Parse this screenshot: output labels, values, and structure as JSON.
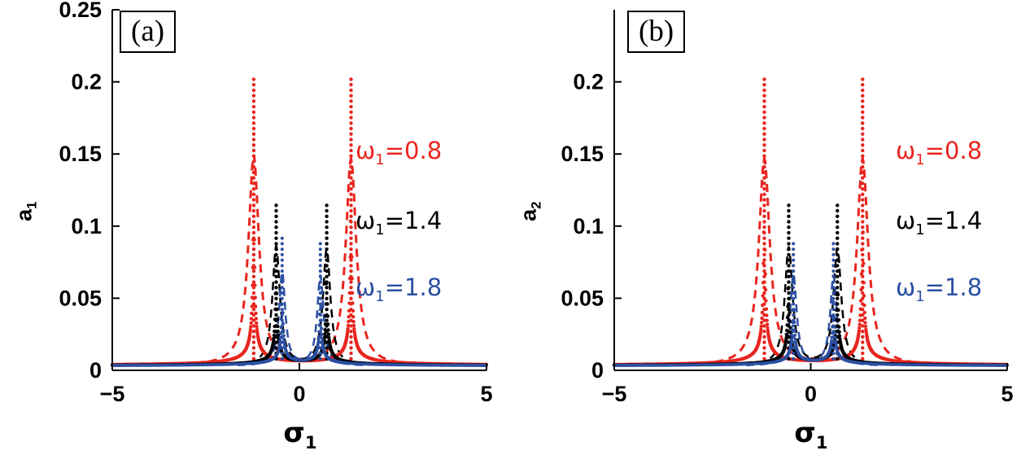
{
  "figure": {
    "background": "#ffffff",
    "panels": [
      {
        "tag": "(a)",
        "xlabel": {
          "base": "σ",
          "sub": "1"
        },
        "ylabel": {
          "base": "a",
          "sub": "1"
        },
        "legend": [
          {
            "base": "ω",
            "sub": "1",
            "rest": "=0.8",
            "color": "#e8251f"
          },
          {
            "base": "ω",
            "sub": "1",
            "rest": "=1.4",
            "color": "#000000"
          },
          {
            "base": "ω",
            "sub": "1",
            "rest": "=1.8",
            "color": "#2b4fa2"
          }
        ]
      },
      {
        "tag": "(b)",
        "xlabel": {
          "base": "σ",
          "sub": "1"
        },
        "ylabel": {
          "base": "a",
          "sub": "2"
        },
        "legend": [
          {
            "base": "ω",
            "sub": "1",
            "rest": "=0.8",
            "color": "#e8251f"
          },
          {
            "base": "ω",
            "sub": "1",
            "rest": "=1.4",
            "color": "#000000"
          },
          {
            "base": "ω",
            "sub": "1",
            "rest": "=1.8",
            "color": "#2b4fa2"
          }
        ]
      }
    ]
  },
  "chart_data": [
    {
      "type": "scatter",
      "panel": "(a)",
      "title": "",
      "xlabel": "sigma_1 (detuning)",
      "ylabel": "a_1 (amplitude)",
      "xlim": [
        -5,
        5
      ],
      "ylim": [
        0,
        0.25
      ],
      "xticks": [
        -5,
        0,
        5
      ],
      "yticks": [
        0,
        0.05,
        0.1,
        0.15,
        0.2,
        0.25
      ],
      "grid": false,
      "legend_position": "inside-right",
      "series": [
        {
          "name": "omega1=0.8",
          "color": "#e8251f",
          "stable_style": "dot-markers",
          "unstable_style": "dashed",
          "baseline": 0.003,
          "dash_width": 0.17,
          "dash_span": 2.3,
          "peaks": [
            {
              "x": -1.22,
              "height": 0.205
            },
            {
              "x": 1.38,
              "height": 0.202
            }
          ]
        },
        {
          "name": "omega1=1.4",
          "color": "#000000",
          "stable_style": "dot-markers",
          "unstable_style": "dashed",
          "baseline": 0.003,
          "dash_width": 0.12,
          "dash_span": 1.5,
          "peaks": [
            {
              "x": -0.62,
              "height": 0.118
            },
            {
              "x": 0.73,
              "height": 0.115
            }
          ]
        },
        {
          "name": "omega1=1.8",
          "color": "#2b4fa2",
          "stable_style": "dot-markers",
          "unstable_style": "dashed",
          "baseline": 0.003,
          "dash_width": 0.1,
          "dash_span": 1.2,
          "peaks": [
            {
              "x": -0.46,
              "height": 0.093
            },
            {
              "x": 0.56,
              "height": 0.09
            }
          ]
        }
      ]
    },
    {
      "type": "scatter",
      "panel": "(b)",
      "title": "",
      "xlabel": "sigma_1 (detuning)",
      "ylabel": "a_2 (amplitude)",
      "xlim": [
        -5,
        5
      ],
      "ylim": [
        0,
        0.25
      ],
      "xticks": [
        -5,
        0,
        5
      ],
      "yticks": [
        0,
        0.05,
        0.1,
        0.15,
        0.2
      ],
      "grid": false,
      "legend_position": "inside-right",
      "series": [
        {
          "name": "omega1=0.8",
          "color": "#e8251f",
          "stable_style": "dot-markers",
          "unstable_style": "dashed",
          "baseline": 0.003,
          "dash_width": 0.17,
          "dash_span": 2.3,
          "peaks": [
            {
              "x": -1.18,
              "height": 0.202
            },
            {
              "x": 1.32,
              "height": 0.202
            }
          ]
        },
        {
          "name": "omega1=1.4",
          "color": "#000000",
          "stable_style": "dot-markers",
          "unstable_style": "dashed",
          "baseline": 0.003,
          "dash_width": 0.12,
          "dash_span": 1.5,
          "peaks": [
            {
              "x": -0.56,
              "height": 0.117
            },
            {
              "x": 0.68,
              "height": 0.116
            }
          ]
        },
        {
          "name": "omega1=1.8",
          "color": "#2b4fa2",
          "stable_style": "dot-markers",
          "unstable_style": "dashed",
          "baseline": 0.003,
          "dash_width": 0.1,
          "dash_span": 1.2,
          "peaks": [
            {
              "x": -0.44,
              "height": 0.091
            },
            {
              "x": 0.58,
              "height": 0.09
            }
          ]
        }
      ]
    }
  ]
}
